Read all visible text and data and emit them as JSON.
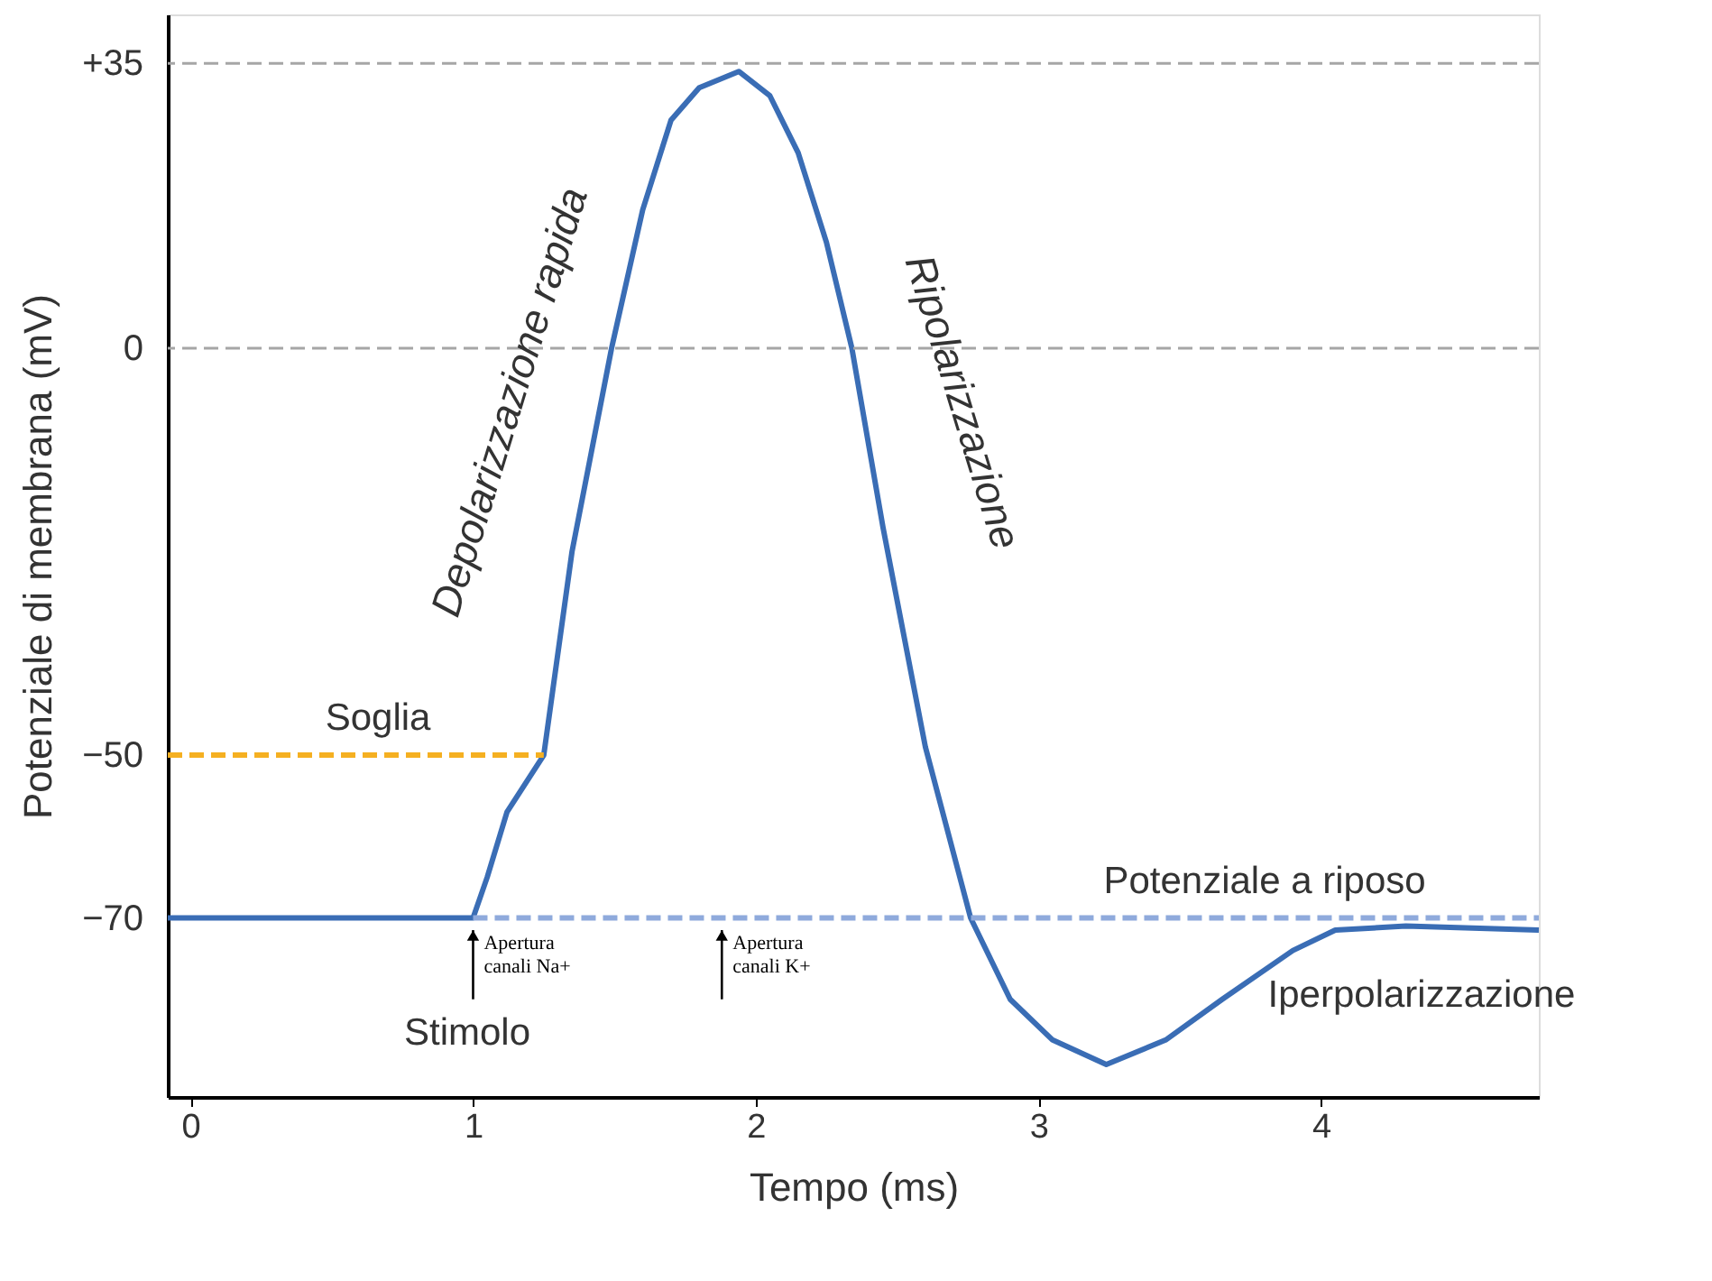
{
  "chart_data": {
    "type": "line",
    "xlabel": "Tempo (ms)",
    "ylabel": "Potenziale di membrana (mV)",
    "xlim": [
      -0.08,
      4.77
    ],
    "xticks": [
      0,
      1,
      2,
      3,
      4
    ],
    "ylim": [
      -92,
      41
    ],
    "yticks": [
      {
        "value": 35,
        "label": "+35"
      },
      0,
      -50,
      -70
    ],
    "grid": false,
    "marker": "none",
    "series": [
      {
        "color": "#3a6db5",
        "line_style": "solid",
        "x": [
          -0.08,
          1.0,
          1.05,
          1.12,
          1.25,
          1.35,
          1.49,
          1.6,
          1.7,
          1.8,
          1.94,
          2.05,
          2.15,
          2.25,
          2.34,
          2.45,
          2.6,
          2.76,
          2.9,
          3.05,
          3.24,
          3.45,
          3.65,
          3.9,
          4.05,
          4.3,
          4.77
        ],
        "values": [
          -70,
          -70,
          -65,
          -57,
          -50,
          -25,
          0,
          17,
          28,
          32,
          34,
          31,
          24,
          13,
          0,
          -22,
          -49,
          -70,
          -80,
          -85,
          -88,
          -85,
          -80,
          -74,
          -71.5,
          -71,
          -71.5
        ]
      },
      {
        "name": "Soglia",
        "color": "#f5b021",
        "line_style": "dashed",
        "x": [
          -0.08,
          1.25
        ],
        "values": [
          -50,
          -50
        ]
      },
      {
        "name": "Potenziale a riposo",
        "color": "#8faadc",
        "line_style": "dashed",
        "x": [
          1.0,
          4.77
        ],
        "values": [
          -70,
          -70
        ]
      }
    ],
    "ref_lines": [
      {
        "axis": "y",
        "value": 35,
        "color": "#a6a6a6",
        "line_style": "dashed"
      },
      {
        "axis": "y",
        "value": 0,
        "color": "#a6a6a6",
        "line_style": "dashed"
      }
    ],
    "annotations": [
      "Depolarizzazione rapida",
      "Ripolarizzazione",
      "Iperpolarizzazione",
      "Stimolo",
      {
        "text": "Apertura\ncanali Na+",
        "x": 1.0,
        "y": -70
      },
      {
        "text": "Apertura\ncanali K+",
        "x": 1.88,
        "y": -70
      }
    ]
  }
}
